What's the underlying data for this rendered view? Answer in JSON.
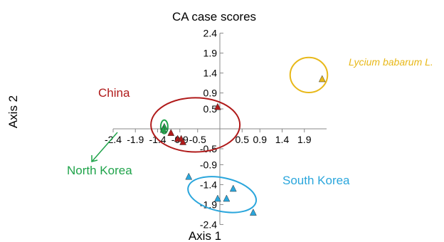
{
  "chart_data": {
    "type": "scatter",
    "title": "CA case scores",
    "xlabel": "Axis 1",
    "ylabel": "Axis 2",
    "xlim": [
      -2.4,
      2.4
    ],
    "ylim": [
      -2.4,
      2.4
    ],
    "x_ticks": [
      "-2.4",
      "-1.9",
      "-1.4",
      "-0.9",
      "-0.5",
      "0.5",
      "0.9",
      "1.4",
      "1.9"
    ],
    "y_ticks": [
      "2.4",
      "1.9",
      "1.4",
      "0.9",
      "0.5",
      "-0.5",
      "-0.9",
      "-1.4",
      "-1.9",
      "-2.4"
    ],
    "series": [
      {
        "name": "China",
        "color": "#b01a1a",
        "points": [
          {
            "x": -0.05,
            "y": 0.55
          },
          {
            "x": -1.1,
            "y": -0.1
          },
          {
            "x": -0.95,
            "y": -0.25
          },
          {
            "x": -0.87,
            "y": -0.25
          },
          {
            "x": -0.83,
            "y": -0.33
          }
        ]
      },
      {
        "name": "North Korea",
        "color": "#1fa34a",
        "points": [
          {
            "x": -1.25,
            "y": 0.05
          },
          {
            "x": -1.27,
            "y": -0.02
          }
        ]
      },
      {
        "name": "South Korea",
        "color": "#2aa6dc",
        "points": [
          {
            "x": -0.7,
            "y": -1.2
          },
          {
            "x": -0.05,
            "y": -1.75
          },
          {
            "x": 0.15,
            "y": -1.75
          },
          {
            "x": 0.3,
            "y": -1.5
          },
          {
            "x": 0.75,
            "y": -2.1
          }
        ]
      },
      {
        "name": "Lycium babarum L.",
        "color": "#e8b818",
        "points": [
          {
            "x": 2.3,
            "y": 1.25
          }
        ]
      }
    ],
    "ellipses": [
      {
        "group": "China",
        "color": "#b01a1a",
        "cx": -0.55,
        "cy": 0.1,
        "rx": 1.0,
        "ry": 0.68
      },
      {
        "group": "North Korea",
        "color": "#1fa34a",
        "cx": -1.25,
        "cy": 0.05,
        "rx": 0.08,
        "ry": 0.17
      },
      {
        "group": "South Korea",
        "color": "#2aa6dc",
        "cx": 0.05,
        "cy": -1.65,
        "rx": 0.78,
        "ry": 0.42,
        "angle": 12
      },
      {
        "group": "Lycium babarum L.",
        "color": "#e8b818",
        "cx": 2.0,
        "cy": 1.35,
        "rx": 0.42,
        "ry": 0.44
      }
    ]
  },
  "legend_labels": {
    "china": "China",
    "north_korea": "North Korea",
    "south_korea": "South Korea",
    "lycium": "Lycium babarum L."
  }
}
